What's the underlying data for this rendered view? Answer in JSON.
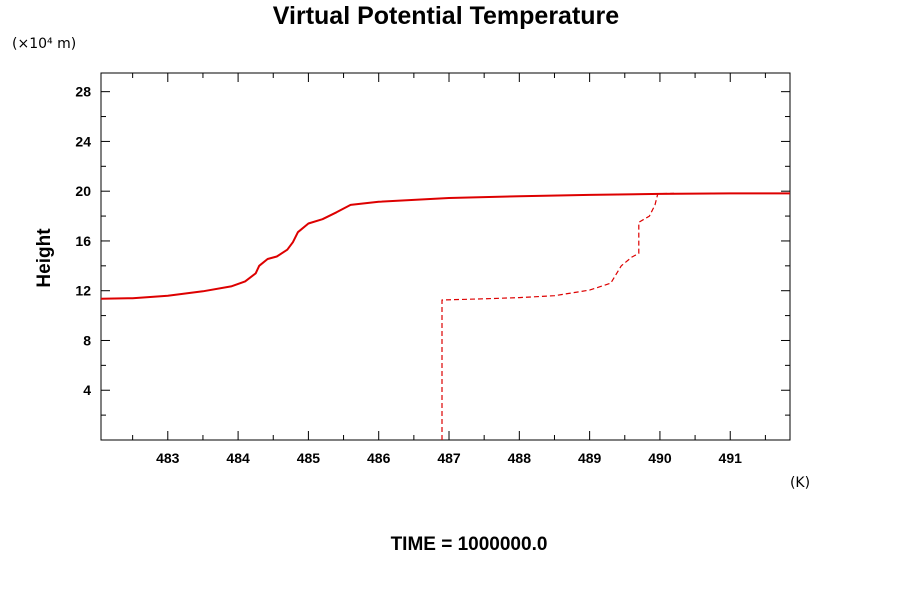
{
  "chart_data": {
    "type": "line",
    "title": "Virtual Potential Temperature",
    "y_unit": "(×10⁴ m)",
    "x_unit": "(K)",
    "ylabel": "Height",
    "xlabel": "",
    "footer": "TIME = 1000000.0",
    "xlim": [
      482.05,
      491.85
    ],
    "ylim": [
      0,
      29.5
    ],
    "x_ticks": [
      483,
      484,
      485,
      486,
      487,
      488,
      489,
      490,
      491
    ],
    "y_ticks": [
      4,
      8,
      12,
      16,
      20,
      24,
      28
    ],
    "grid": false,
    "series": [
      {
        "style": "solid",
        "color": "#dd0000",
        "points": [
          [
            482.05,
            11.35
          ],
          [
            482.5,
            11.4
          ],
          [
            483.0,
            11.6
          ],
          [
            483.5,
            11.95
          ],
          [
            483.9,
            12.35
          ],
          [
            484.1,
            12.75
          ],
          [
            484.25,
            13.4
          ],
          [
            484.3,
            14.0
          ],
          [
            484.42,
            14.55
          ],
          [
            484.55,
            14.75
          ],
          [
            484.7,
            15.3
          ],
          [
            484.78,
            15.9
          ],
          [
            484.85,
            16.7
          ],
          [
            485.0,
            17.4
          ],
          [
            485.2,
            17.75
          ],
          [
            485.4,
            18.3
          ],
          [
            485.6,
            18.9
          ],
          [
            486.0,
            19.15
          ],
          [
            487.0,
            19.45
          ],
          [
            488.0,
            19.6
          ],
          [
            489.0,
            19.7
          ],
          [
            490.0,
            19.78
          ],
          [
            491.0,
            19.82
          ],
          [
            491.85,
            19.82
          ]
        ]
      },
      {
        "style": "dashed",
        "color": "#dd0000",
        "points": [
          [
            486.9,
            0.0
          ],
          [
            486.9,
            11.25
          ],
          [
            487.5,
            11.35
          ],
          [
            488.0,
            11.45
          ],
          [
            488.5,
            11.6
          ],
          [
            489.0,
            12.05
          ],
          [
            489.3,
            12.6
          ],
          [
            489.45,
            14.0
          ],
          [
            489.6,
            14.7
          ],
          [
            489.7,
            15.0
          ],
          [
            489.7,
            17.5
          ],
          [
            489.85,
            18.0
          ],
          [
            489.93,
            18.9
          ],
          [
            489.97,
            19.8
          ],
          [
            490.2,
            19.82
          ]
        ]
      }
    ]
  }
}
